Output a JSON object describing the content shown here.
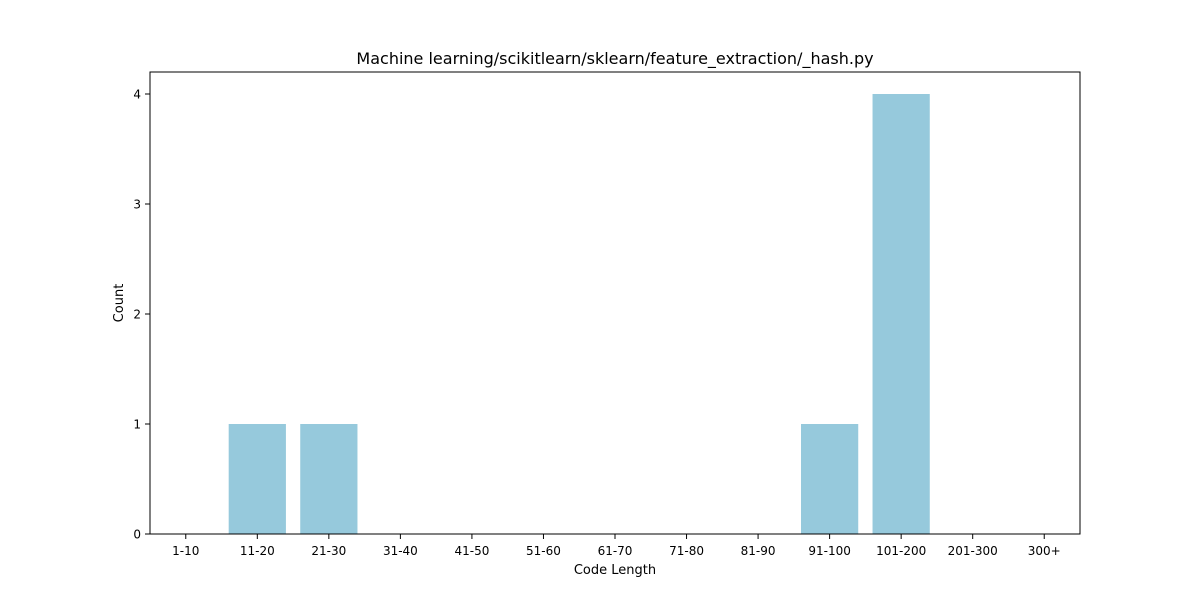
{
  "chart_data": {
    "type": "bar",
    "title": "Machine learning/scikitlearn/sklearn/feature_extraction/_hash.py",
    "xlabel": "Code Length",
    "ylabel": "Count",
    "categories": [
      "1-10",
      "11-20",
      "21-30",
      "31-40",
      "41-50",
      "51-60",
      "61-70",
      "71-80",
      "81-90",
      "91-100",
      "101-200",
      "201-300",
      "300+"
    ],
    "values": [
      0,
      1,
      1,
      0,
      0,
      0,
      0,
      0,
      0,
      1,
      4,
      0,
      0
    ],
    "yticks": [
      0,
      1,
      2,
      3,
      4
    ],
    "ylim": [
      0,
      4.2
    ],
    "bar_color": "#96c9dc",
    "grid": false,
    "legend": false
  }
}
